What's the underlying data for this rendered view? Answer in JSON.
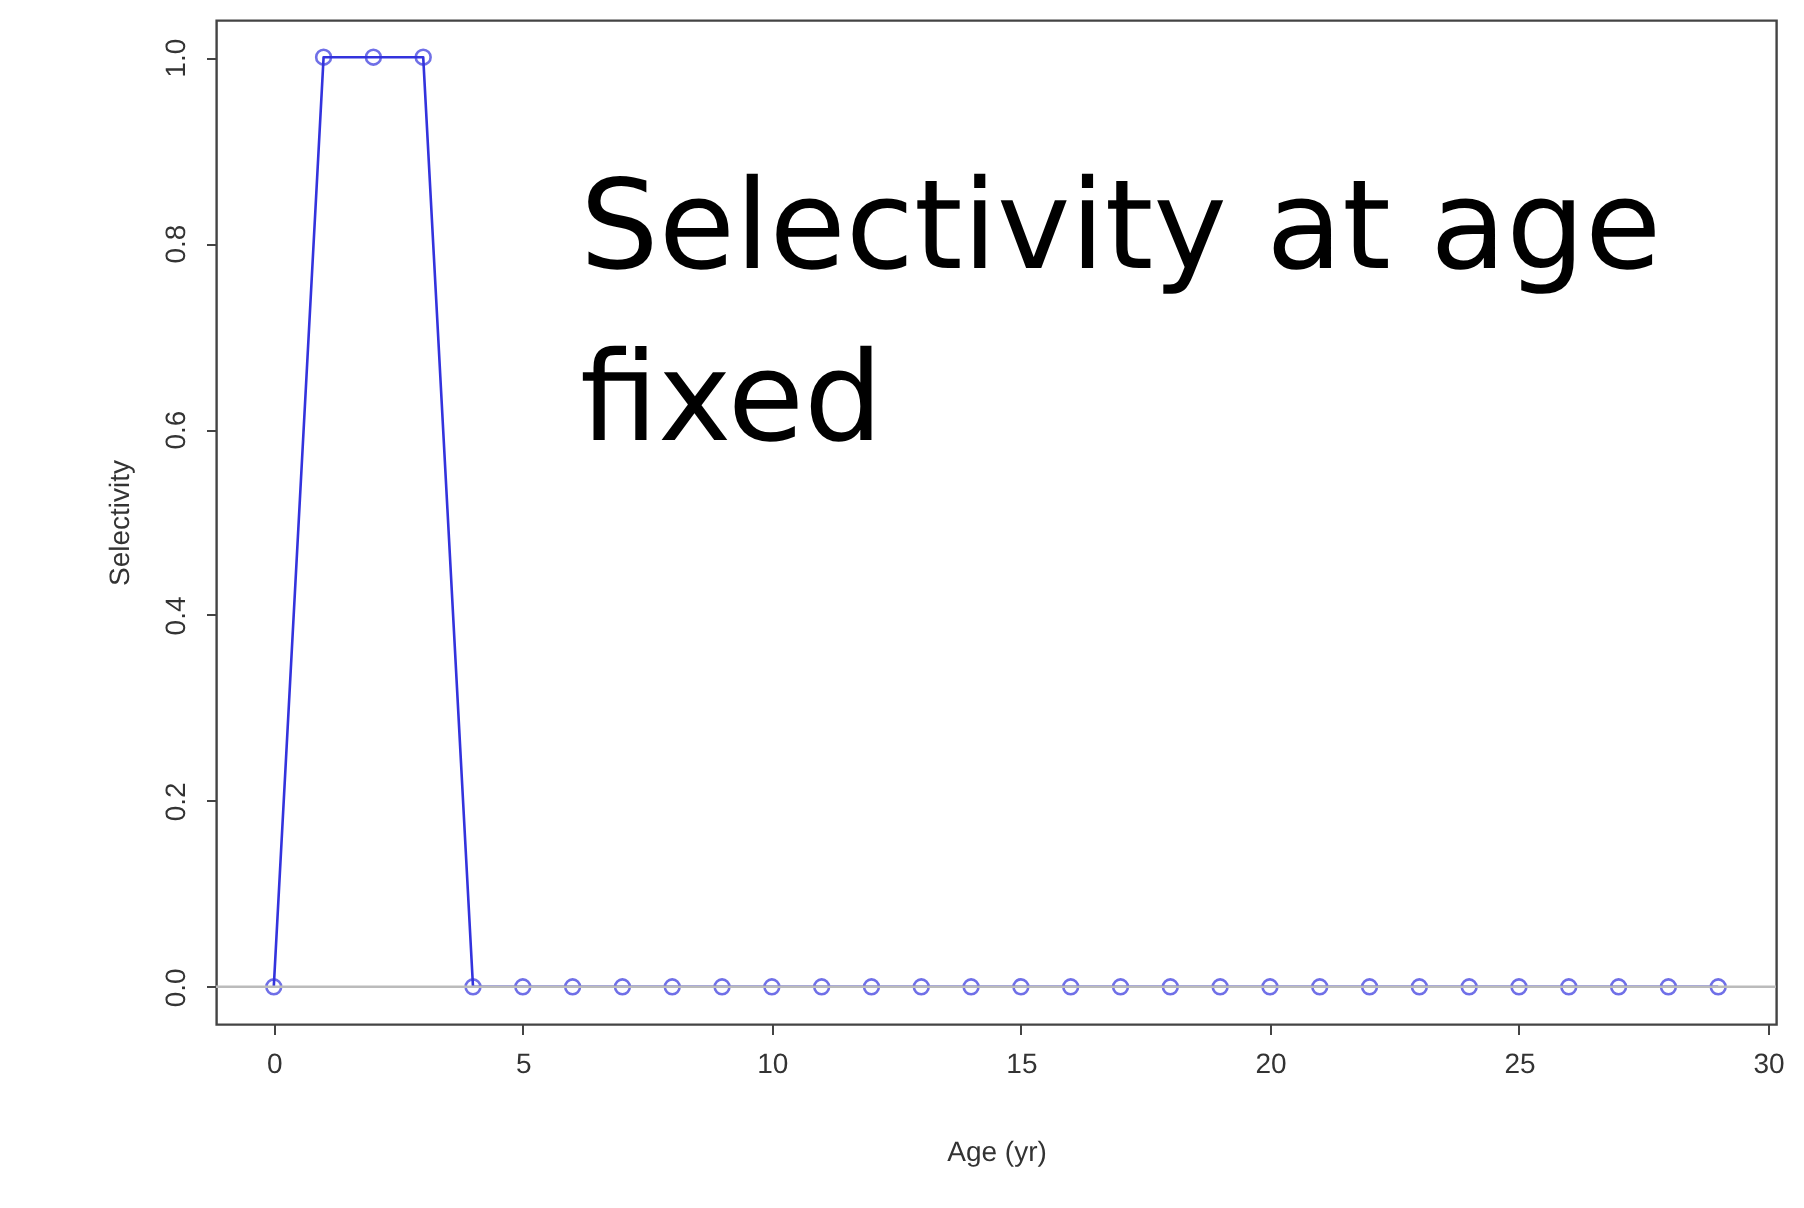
{
  "chart_data": {
    "type": "line",
    "xlabel": "Age (yr)",
    "ylabel": "Selectivity",
    "annotations": [
      "Selectivity at age fixed"
    ],
    "x": [
      0,
      1,
      2,
      3,
      4,
      5,
      6,
      7,
      8,
      9,
      10,
      11,
      12,
      13,
      14,
      15,
      16,
      17,
      18,
      19,
      20,
      21,
      22,
      23,
      24,
      25,
      26,
      27,
      28,
      29
    ],
    "series": [
      {
        "color": "#3333dd",
        "values": [
          0,
          1,
          1,
          1,
          0,
          0,
          0,
          0,
          0,
          0,
          0,
          0,
          0,
          0,
          0,
          0,
          0,
          0,
          0,
          0,
          0,
          0,
          0,
          0,
          0,
          0,
          0,
          0,
          0,
          0
        ]
      }
    ],
    "xlim": [
      -1.16,
      30.16
    ],
    "xticks": [
      0,
      5,
      10,
      15,
      20,
      25,
      30
    ],
    "ylim": [
      -0.04,
      1.04
    ],
    "yticks": [
      {
        "value": 0,
        "label": "0.0"
      },
      {
        "value": 0.2,
        "label": "0.2"
      },
      {
        "value": 0.4,
        "label": "0.4"
      },
      {
        "value": 0.6,
        "label": "0.6"
      },
      {
        "value": 0.8,
        "label": "0.8"
      },
      {
        "value": 1,
        "label": "1.0"
      }
    ],
    "ref_lines": [
      {
        "axis": "y",
        "value": 0,
        "color": "#bbbbbb"
      }
    ],
    "grid": false,
    "marker": "circle",
    "line_style": "solid"
  }
}
